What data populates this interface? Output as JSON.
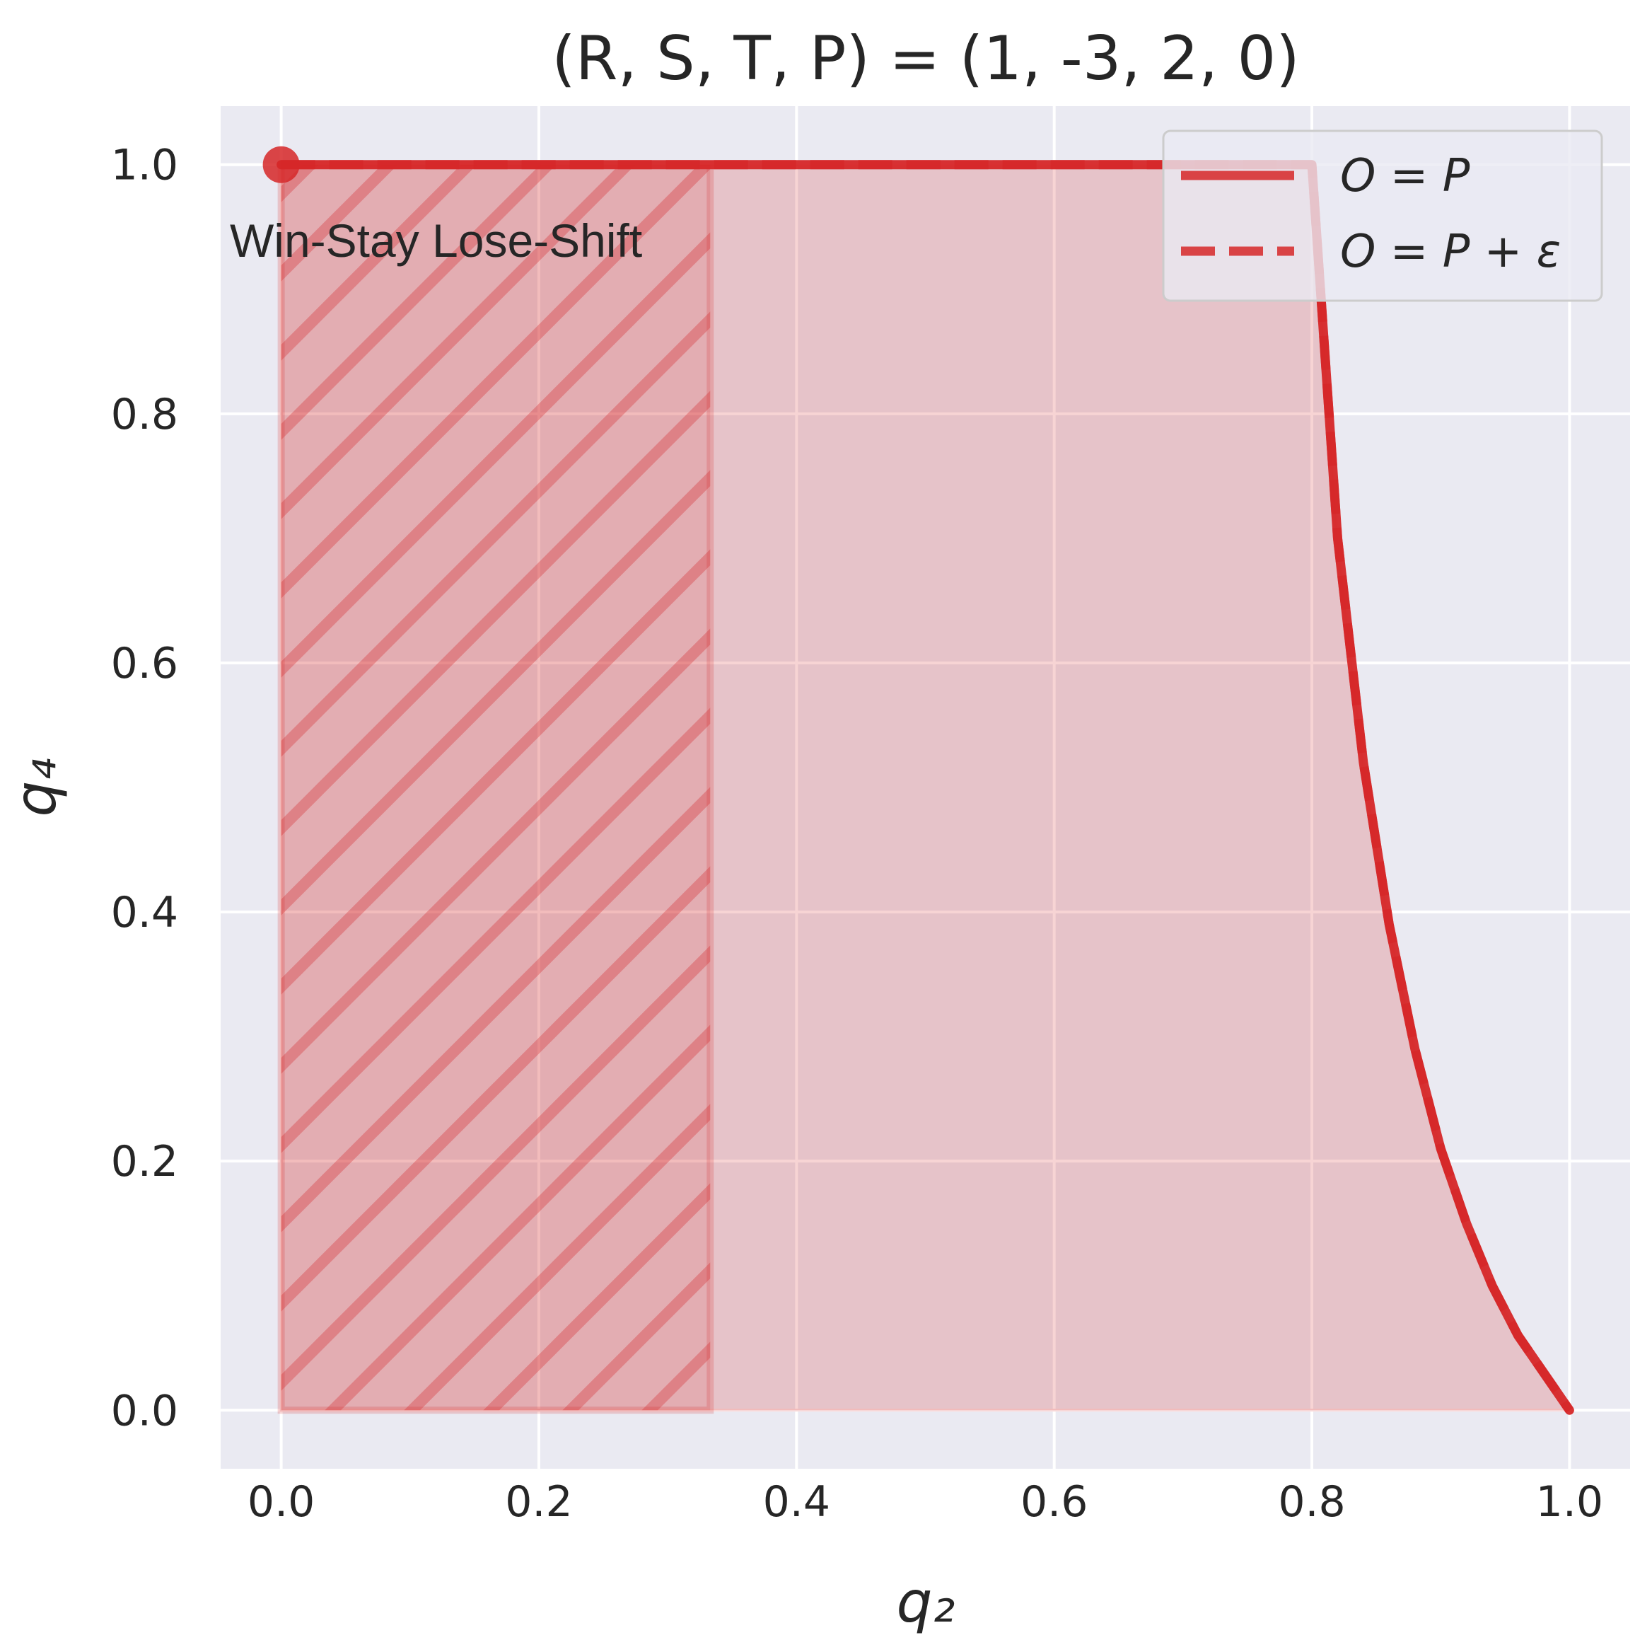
{
  "chart_data": {
    "type": "line",
    "title": "(R, S, T, P) = (1, -3, 2, 0)",
    "xlabel": "q₂",
    "ylabel": "q₄",
    "xlim": [
      -0.047,
      1.047
    ],
    "ylim": [
      -0.047,
      1.047
    ],
    "xticks": [
      "0.0",
      "0.2",
      "0.4",
      "0.6",
      "0.8",
      "1.0"
    ],
    "yticks": [
      "0.0",
      "0.2",
      "0.4",
      "0.6",
      "0.8",
      "1.0"
    ],
    "grid": true,
    "legend_position": "top-right",
    "colors": {
      "series": "#d62728",
      "background": "#eaeaf2",
      "grid": "#ffffff"
    },
    "series": [
      {
        "name": "O = P",
        "style": "solid",
        "x": [
          0.0,
          0.1,
          0.2,
          0.3,
          0.4,
          0.5,
          0.6,
          0.7,
          0.8,
          0.82,
          0.84,
          0.86,
          0.88,
          0.9,
          0.92,
          0.94,
          0.96,
          0.98,
          1.0
        ],
        "y": [
          1.0,
          1.0,
          1.0,
          1.0,
          1.0,
          1.0,
          1.0,
          1.0,
          1.0,
          0.7,
          0.52,
          0.39,
          0.29,
          0.21,
          0.15,
          0.1,
          0.06,
          0.03,
          0.0
        ]
      },
      {
        "name": "O = P + ε",
        "style": "dashed",
        "x": [
          0.0,
          0.1,
          0.2,
          0.3,
          0.4,
          0.5,
          0.6,
          0.7,
          0.8,
          0.82,
          0.84,
          0.86,
          0.88,
          0.9,
          0.92,
          0.94,
          0.96,
          0.98,
          1.0
        ],
        "y": [
          1.0,
          1.0,
          1.0,
          1.0,
          1.0,
          1.0,
          1.0,
          1.0,
          1.0,
          0.7,
          0.52,
          0.39,
          0.29,
          0.21,
          0.15,
          0.1,
          0.06,
          0.03,
          0.0
        ]
      }
    ],
    "hatched_region": {
      "x": [
        0.0,
        0.333
      ],
      "y": [
        0.0,
        1.0
      ]
    },
    "highlight_point": {
      "x": 0.0,
      "y": 1.0
    },
    "annotation": "Win-Stay Lose-Shift"
  }
}
